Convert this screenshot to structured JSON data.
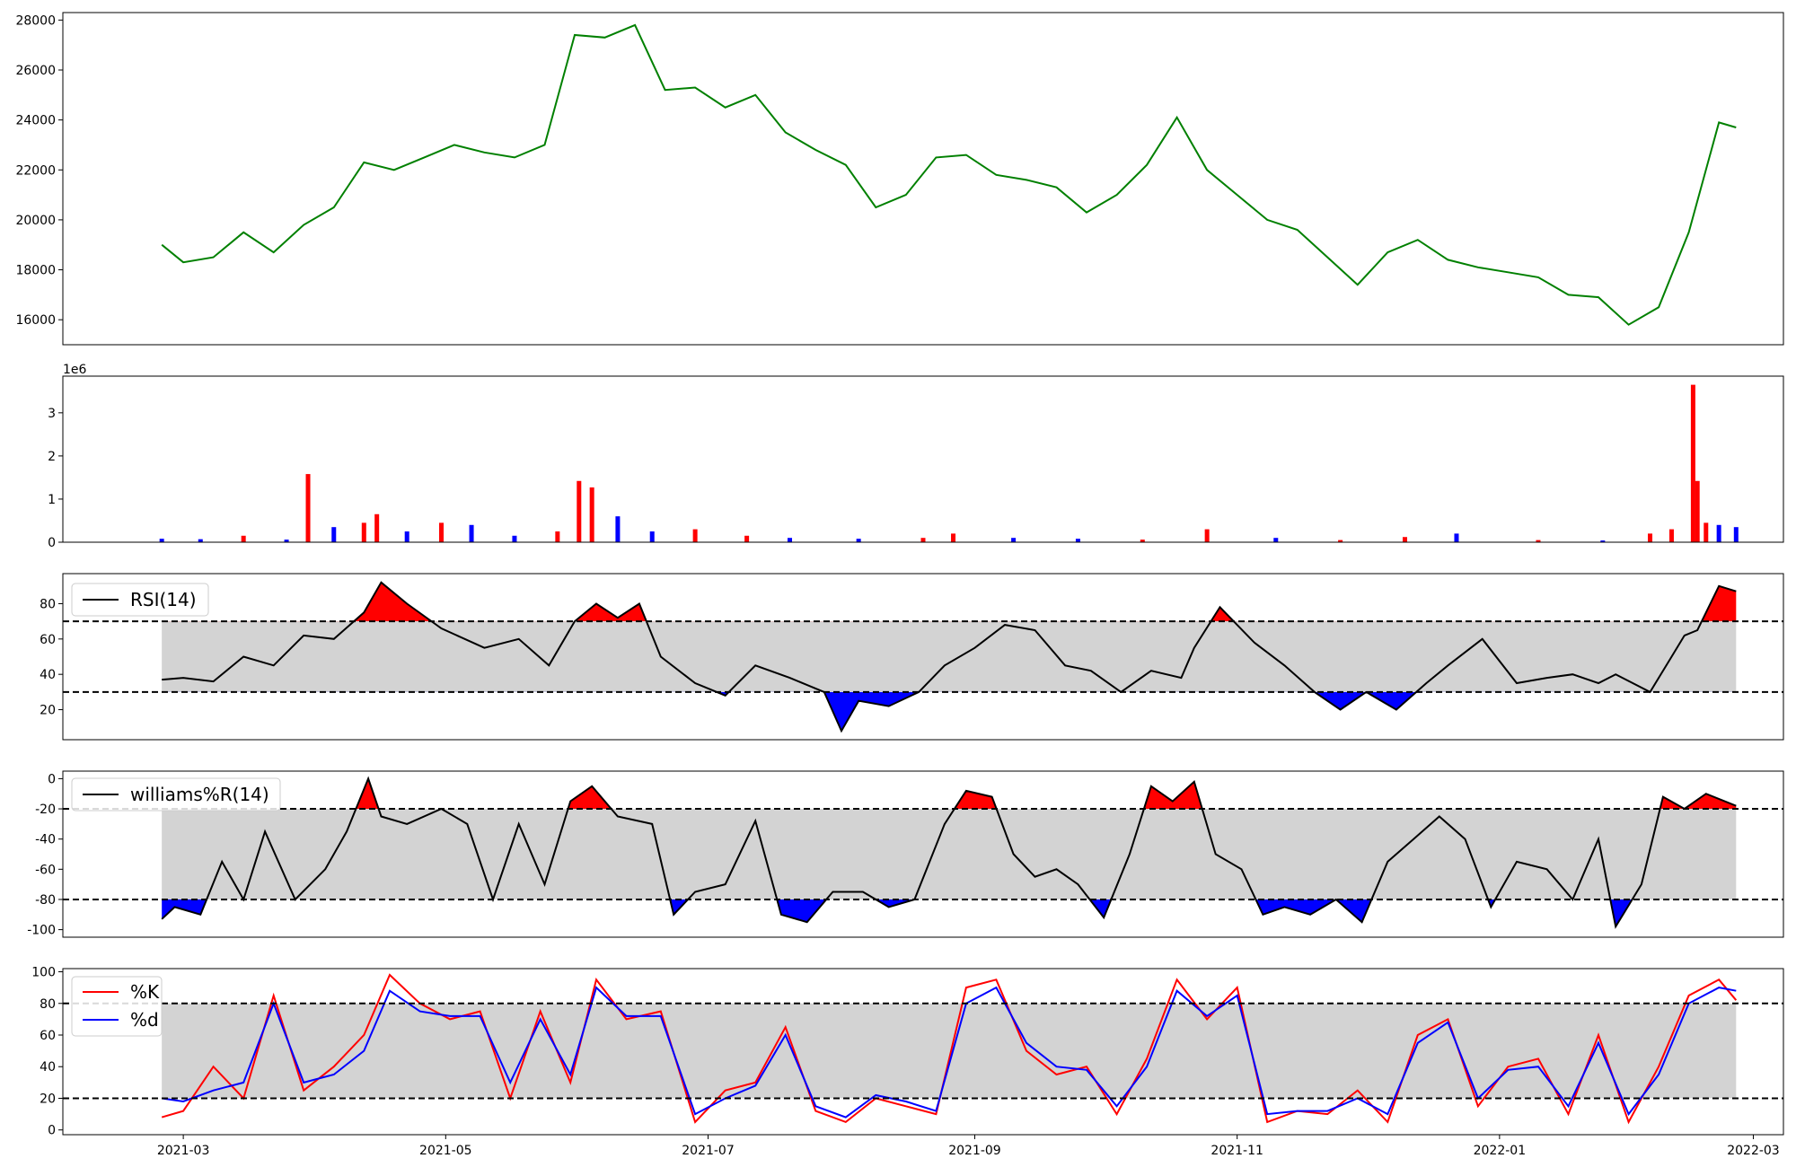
{
  "figure": {
    "colors": {
      "price_line": "#008000",
      "volume_up": "#ff0000",
      "volume_down": "#0000ff",
      "overbought_fill": "#ff0000",
      "oversold_fill": "#0000ff",
      "band_fill": "#d3d3d3",
      "indicator_line": "#000000",
      "k_line": "#ff0000",
      "d_line": "#0000ff"
    },
    "x_axis": {
      "type": "date",
      "range": [
        "2021-02-01",
        "2022-03-08"
      ],
      "tick_labels": [
        "2021-03",
        "2021-05",
        "2021-07",
        "2021-09",
        "2021-11",
        "2022-01",
        "2022-03"
      ],
      "tick_dates": [
        "2021-03-01",
        "2021-05-01",
        "2021-07-01",
        "2021-09-01",
        "2021-11-01",
        "2022-01-01",
        "2022-03-01"
      ]
    }
  },
  "chart_data": [
    {
      "type": "line",
      "name_key": "price",
      "ylim": [
        15000,
        28300
      ],
      "yticks": [
        "16000",
        "18000",
        "20000",
        "22000",
        "24000",
        "26000",
        "28000"
      ],
      "x": [
        "2021-02-24",
        "2021-03-01",
        "2021-03-08",
        "2021-03-15",
        "2021-03-22",
        "2021-03-29",
        "2021-04-05",
        "2021-04-12",
        "2021-04-19",
        "2021-04-26",
        "2021-05-03",
        "2021-05-10",
        "2021-05-17",
        "2021-05-24",
        "2021-05-31",
        "2021-06-07",
        "2021-06-14",
        "2021-06-21",
        "2021-06-28",
        "2021-07-05",
        "2021-07-12",
        "2021-07-19",
        "2021-07-26",
        "2021-08-02",
        "2021-08-09",
        "2021-08-16",
        "2021-08-23",
        "2021-08-30",
        "2021-09-06",
        "2021-09-13",
        "2021-09-20",
        "2021-09-27",
        "2021-10-04",
        "2021-10-11",
        "2021-10-18",
        "2021-10-25",
        "2021-11-01",
        "2021-11-08",
        "2021-11-15",
        "2021-11-22",
        "2021-11-29",
        "2021-12-06",
        "2021-12-13",
        "2021-12-20",
        "2021-12-27",
        "2022-01-03",
        "2022-01-10",
        "2022-01-17",
        "2022-01-24",
        "2022-01-31",
        "2022-02-07",
        "2022-02-14",
        "2022-02-21",
        "2022-02-25"
      ],
      "values": [
        19000,
        18300,
        18500,
        19500,
        18700,
        19800,
        20500,
        22300,
        22000,
        22500,
        23000,
        22700,
        22500,
        23000,
        27400,
        27300,
        27800,
        25200,
        25300,
        24500,
        25000,
        23500,
        22800,
        22200,
        20500,
        21000,
        22500,
        22600,
        21800,
        21600,
        21300,
        20300,
        21000,
        22200,
        24100,
        22000,
        21000,
        20000,
        19600,
        18500,
        17400,
        18700,
        19200,
        18400,
        18100,
        17900,
        17700,
        17000,
        16900,
        15800,
        16500,
        19500,
        23900,
        23700
      ],
      "series_name": ""
    },
    {
      "type": "bar",
      "name_key": "volume",
      "ylim": [
        0,
        3.85
      ],
      "yticks": [
        "0",
        "1",
        "2",
        "3"
      ],
      "offset_label": "1e6",
      "x": [
        "2021-02-24",
        "2021-03-05",
        "2021-03-15",
        "2021-03-25",
        "2021-03-30",
        "2021-04-05",
        "2021-04-12",
        "2021-04-15",
        "2021-04-22",
        "2021-04-30",
        "2021-05-07",
        "2021-05-17",
        "2021-05-27",
        "2021-06-01",
        "2021-06-04",
        "2021-06-10",
        "2021-06-18",
        "2021-06-28",
        "2021-07-10",
        "2021-07-20",
        "2021-08-05",
        "2021-08-20",
        "2021-08-27",
        "2021-09-10",
        "2021-09-25",
        "2021-10-10",
        "2021-10-25",
        "2021-11-10",
        "2021-11-25",
        "2021-12-10",
        "2021-12-22",
        "2022-01-10",
        "2022-01-25",
        "2022-02-05",
        "2022-02-10",
        "2022-02-15",
        "2022-02-16",
        "2022-02-18",
        "2022-02-21",
        "2022-02-25"
      ],
      "values": [
        0.08,
        0.07,
        0.15,
        0.06,
        1.58,
        0.35,
        0.45,
        0.65,
        0.25,
        0.45,
        0.4,
        0.15,
        0.25,
        1.42,
        1.27,
        0.6,
        0.25,
        0.3,
        0.15,
        0.1,
        0.08,
        0.1,
        0.2,
        0.1,
        0.08,
        0.06,
        0.3,
        0.1,
        0.05,
        0.12,
        0.2,
        0.05,
        0.04,
        0.2,
        0.3,
        3.65,
        1.42,
        0.45,
        0.4,
        0.35
      ],
      "up": [
        false,
        false,
        true,
        false,
        true,
        false,
        true,
        true,
        false,
        true,
        false,
        false,
        true,
        true,
        true,
        false,
        false,
        true,
        true,
        false,
        false,
        true,
        true,
        false,
        false,
        true,
        true,
        false,
        true,
        true,
        false,
        true,
        false,
        true,
        true,
        true,
        true,
        true,
        false,
        false
      ]
    },
    {
      "type": "line",
      "name_key": "rsi",
      "series_name": "RSI(14)",
      "ylim": [
        3,
        97
      ],
      "yticks": [
        "20",
        "40",
        "60",
        "80"
      ],
      "thresholds": [
        30,
        70
      ],
      "x": [
        "2021-02-24",
        "2021-03-01",
        "2021-03-08",
        "2021-03-15",
        "2021-03-22",
        "2021-03-29",
        "2021-04-05",
        "2021-04-12",
        "2021-04-16",
        "2021-04-22",
        "2021-04-30",
        "2021-05-10",
        "2021-05-18",
        "2021-05-25",
        "2021-05-31",
        "2021-06-05",
        "2021-06-10",
        "2021-06-15",
        "2021-06-20",
        "2021-06-28",
        "2021-07-05",
        "2021-07-12",
        "2021-07-20",
        "2021-07-28",
        "2021-08-01",
        "2021-08-05",
        "2021-08-12",
        "2021-08-19",
        "2021-08-25",
        "2021-09-01",
        "2021-09-08",
        "2021-09-15",
        "2021-09-22",
        "2021-09-28",
        "2021-10-05",
        "2021-10-12",
        "2021-10-19",
        "2021-10-22",
        "2021-10-28",
        "2021-11-05",
        "2021-11-12",
        "2021-11-19",
        "2021-11-25",
        "2021-12-01",
        "2021-12-08",
        "2021-12-15",
        "2021-12-20",
        "2021-12-28",
        "2022-01-05",
        "2022-01-12",
        "2022-01-18",
        "2022-01-24",
        "2022-01-28",
        "2022-02-05",
        "2022-02-10",
        "2022-02-13",
        "2022-02-16",
        "2022-02-21",
        "2022-02-25"
      ],
      "values": [
        37,
        38,
        36,
        50,
        45,
        62,
        60,
        75,
        92,
        80,
        66,
        55,
        60,
        45,
        70,
        80,
        72,
        80,
        50,
        35,
        28,
        45,
        38,
        30,
        8,
        25,
        22,
        30,
        45,
        55,
        68,
        65,
        45,
        42,
        30,
        42,
        38,
        55,
        78,
        58,
        45,
        30,
        20,
        30,
        20,
        35,
        45,
        60,
        35,
        38,
        40,
        35,
        40,
        30,
        50,
        62,
        65,
        90,
        87
      ],
      "overbought_fill": "#ff0000",
      "oversold_fill": "#0000ff"
    },
    {
      "type": "line",
      "name_key": "wr",
      "series_name": "williams%R(14)",
      "ylim": [
        -105,
        5
      ],
      "yticks": [
        "0",
        "-20",
        "-40",
        "-60",
        "-80",
        "-100"
      ],
      "thresholds": [
        -80,
        -20
      ],
      "x": [
        "2021-02-24",
        "2021-02-27",
        "2021-03-05",
        "2021-03-10",
        "2021-03-15",
        "2021-03-20",
        "2021-03-27",
        "2021-04-03",
        "2021-04-08",
        "2021-04-13",
        "2021-04-16",
        "2021-04-22",
        "2021-04-30",
        "2021-05-06",
        "2021-05-12",
        "2021-05-18",
        "2021-05-24",
        "2021-05-30",
        "2021-06-04",
        "2021-06-10",
        "2021-06-18",
        "2021-06-23",
        "2021-06-28",
        "2021-07-05",
        "2021-07-12",
        "2021-07-18",
        "2021-07-24",
        "2021-07-30",
        "2021-08-06",
        "2021-08-12",
        "2021-08-18",
        "2021-08-25",
        "2021-08-30",
        "2021-09-05",
        "2021-09-10",
        "2021-09-15",
        "2021-09-20",
        "2021-09-25",
        "2021-10-01",
        "2021-10-07",
        "2021-10-12",
        "2021-10-17",
        "2021-10-22",
        "2021-10-27",
        "2021-11-02",
        "2021-11-07",
        "2021-11-12",
        "2021-11-18",
        "2021-11-24",
        "2021-11-30",
        "2021-12-06",
        "2021-12-12",
        "2021-12-18",
        "2021-12-24",
        "2021-12-30",
        "2022-01-05",
        "2022-01-12",
        "2022-01-18",
        "2022-01-24",
        "2022-01-28",
        "2022-02-03",
        "2022-02-08",
        "2022-02-13",
        "2022-02-18",
        "2022-02-25"
      ],
      "values": [
        -93,
        -85,
        -90,
        -55,
        -80,
        -35,
        -80,
        -60,
        -35,
        0,
        -25,
        -30,
        -20,
        -30,
        -80,
        -30,
        -70,
        -15,
        -5,
        -25,
        -30,
        -90,
        -75,
        -70,
        -28,
        -90,
        -95,
        -75,
        -75,
        -85,
        -80,
        -30,
        -8,
        -12,
        -50,
        -65,
        -60,
        -70,
        -92,
        -50,
        -5,
        -15,
        -2,
        -50,
        -60,
        -90,
        -85,
        -90,
        -80,
        -95,
        -55,
        -40,
        -25,
        -40,
        -85,
        -55,
        -60,
        -80,
        -40,
        -98,
        -70,
        -12,
        -20,
        -10,
        -18
      ],
      "overbought_fill": "#ff0000",
      "oversold_fill": "#0000ff"
    },
    {
      "type": "line",
      "name_key": "stoch",
      "ylim": [
        -3,
        102
      ],
      "yticks": [
        "0",
        "20",
        "40",
        "60",
        "80",
        "100"
      ],
      "thresholds": [
        20,
        80
      ],
      "x": [
        "2021-02-24",
        "2021-03-01",
        "2021-03-08",
        "2021-03-15",
        "2021-03-22",
        "2021-03-29",
        "2021-04-05",
        "2021-04-12",
        "2021-04-18",
        "2021-04-25",
        "2021-05-02",
        "2021-05-09",
        "2021-05-16",
        "2021-05-23",
        "2021-05-30",
        "2021-06-05",
        "2021-06-12",
        "2021-06-20",
        "2021-06-28",
        "2021-07-05",
        "2021-07-12",
        "2021-07-19",
        "2021-07-26",
        "2021-08-02",
        "2021-08-09",
        "2021-08-16",
        "2021-08-23",
        "2021-08-30",
        "2021-09-06",
        "2021-09-13",
        "2021-09-20",
        "2021-09-27",
        "2021-10-04",
        "2021-10-11",
        "2021-10-18",
        "2021-10-25",
        "2021-11-01",
        "2021-11-08",
        "2021-11-15",
        "2021-11-22",
        "2021-11-29",
        "2021-12-06",
        "2021-12-13",
        "2021-12-20",
        "2021-12-27",
        "2022-01-03",
        "2022-01-10",
        "2022-01-17",
        "2022-01-24",
        "2022-01-31",
        "2022-02-07",
        "2022-02-14",
        "2022-02-21",
        "2022-02-25"
      ],
      "series": [
        {
          "name": "%K",
          "values": [
            8,
            12,
            40,
            20,
            85,
            25,
            40,
            60,
            98,
            80,
            70,
            75,
            20,
            75,
            30,
            95,
            70,
            75,
            5,
            25,
            30,
            65,
            12,
            5,
            20,
            15,
            10,
            90,
            95,
            50,
            35,
            40,
            10,
            45,
            95,
            70,
            90,
            5,
            12,
            10,
            25,
            5,
            60,
            70,
            15,
            40,
            45,
            10,
            60,
            5,
            40,
            85,
            95,
            82
          ]
        },
        {
          "name": "%d",
          "values": [
            20,
            18,
            25,
            30,
            80,
            30,
            35,
            50,
            88,
            75,
            72,
            72,
            30,
            70,
            35,
            90,
            72,
            72,
            10,
            20,
            28,
            60,
            15,
            8,
            22,
            18,
            12,
            80,
            90,
            55,
            40,
            38,
            15,
            40,
            88,
            72,
            85,
            10,
            12,
            12,
            20,
            10,
            55,
            68,
            20,
            38,
            40,
            15,
            55,
            10,
            35,
            80,
            90,
            88
          ]
        }
      ]
    }
  ]
}
